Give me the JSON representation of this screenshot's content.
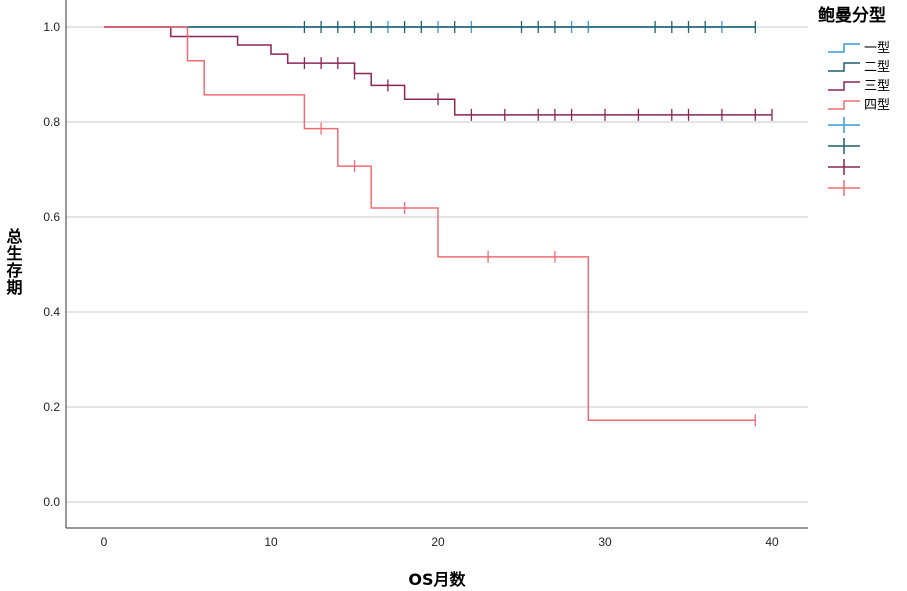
{
  "chart_data": {
    "type": "line",
    "subtype": "kaplan-meier-step",
    "xlabel": "OS月数",
    "ylabel": "总生存期",
    "xlim": [
      0,
      42
    ],
    "ylim": [
      0,
      1.05
    ],
    "xticks": [
      0,
      10,
      20,
      30,
      40
    ],
    "yticks": [
      0.0,
      0.2,
      0.4,
      0.6,
      0.8,
      1.0
    ],
    "ytick_labels": [
      "0.0",
      "0.2",
      "0.4",
      "0.6",
      "0.8",
      "1.0"
    ],
    "grid": "horizontal",
    "legend": {
      "title": "鲍曼分型",
      "placement": "right",
      "entries": [
        "一型",
        "二型",
        "三型",
        "四型",
        "",
        "",
        "",
        ""
      ]
    },
    "series": [
      {
        "name": "一型",
        "color": "#3a9ad9",
        "steps": [
          [
            0,
            1.0
          ],
          [
            39,
            1.0
          ]
        ],
        "censored": [
          [
            17,
            1.0
          ],
          [
            20,
            1.0
          ],
          [
            22,
            1.0
          ],
          [
            28,
            1.0
          ],
          [
            29,
            1.0
          ],
          [
            37,
            1.0
          ]
        ]
      },
      {
        "name": "二型",
        "color": "#1f5f6b",
        "steps": [
          [
            0,
            1.0
          ],
          [
            39,
            1.0
          ]
        ],
        "censored": [
          [
            12,
            1.0
          ],
          [
            13,
            1.0
          ],
          [
            14,
            1.0
          ],
          [
            15,
            1.0
          ],
          [
            16,
            1.0
          ],
          [
            18,
            1.0
          ],
          [
            19,
            1.0
          ],
          [
            21,
            1.0
          ],
          [
            25,
            1.0
          ],
          [
            26,
            1.0
          ],
          [
            27,
            1.0
          ],
          [
            33,
            1.0
          ],
          [
            34,
            1.0
          ],
          [
            35,
            1.0
          ],
          [
            36,
            1.0
          ],
          [
            39,
            1.0
          ]
        ]
      },
      {
        "name": "三型",
        "color": "#8b2557",
        "steps": [
          [
            0,
            1.0
          ],
          [
            4,
            0.98
          ],
          [
            8,
            0.962
          ],
          [
            10,
            0.943
          ],
          [
            11,
            0.924
          ],
          [
            15,
            0.902
          ],
          [
            16,
            0.877
          ],
          [
            18,
            0.848
          ],
          [
            21,
            0.815
          ],
          [
            40,
            0.815
          ]
        ],
        "censored": [
          [
            12,
            0.924
          ],
          [
            13,
            0.924
          ],
          [
            14,
            0.924
          ],
          [
            15,
            0.902
          ],
          [
            17,
            0.877
          ],
          [
            20,
            0.848
          ],
          [
            22,
            0.815
          ],
          [
            24,
            0.815
          ],
          [
            26,
            0.815
          ],
          [
            27,
            0.815
          ],
          [
            28,
            0.815
          ],
          [
            30,
            0.815
          ],
          [
            32,
            0.815
          ],
          [
            34,
            0.815
          ],
          [
            35,
            0.815
          ],
          [
            37,
            0.815
          ],
          [
            39,
            0.815
          ],
          [
            40,
            0.815
          ]
        ]
      },
      {
        "name": "四型",
        "color": "#f06b73",
        "steps": [
          [
            0,
            1.0
          ],
          [
            5,
            0.929
          ],
          [
            6,
            0.857
          ],
          [
            12,
            0.786
          ],
          [
            14,
            0.707
          ],
          [
            16,
            0.619
          ],
          [
            20,
            0.516
          ],
          [
            29,
            0.172
          ],
          [
            39,
            0.172
          ]
        ],
        "censored": [
          [
            13,
            0.786
          ],
          [
            15,
            0.707
          ],
          [
            18,
            0.619
          ],
          [
            23,
            0.516
          ],
          [
            27,
            0.516
          ],
          [
            39,
            0.172
          ]
        ]
      }
    ]
  }
}
